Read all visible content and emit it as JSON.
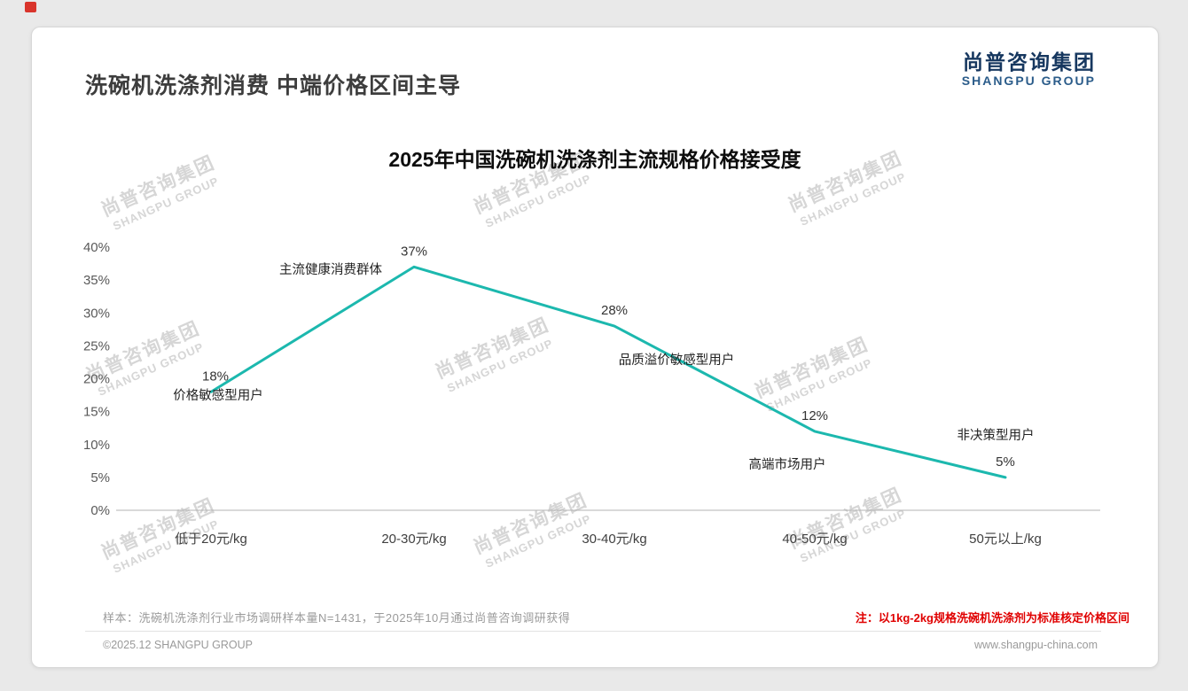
{
  "page": {
    "title": "洗碗机洗涤剂消费 中端价格区间主导"
  },
  "logo": {
    "cn": "尚普咨询集团",
    "en": "SHANGPU GROUP"
  },
  "watermark": {
    "line1": "尚普咨询集团",
    "line2": "SHANGPU GROUP"
  },
  "chart_data": {
    "type": "line",
    "title": "2025年中国洗碗机洗涤剂主流规格价格接受度",
    "categories": [
      "低于20元/kg",
      "20-30元/kg",
      "30-40元/kg",
      "40-50元/kg",
      "50元以上/kg"
    ],
    "values": [
      18,
      37,
      28,
      12,
      5
    ],
    "value_labels": [
      "18%",
      "37%",
      "28%",
      "12%",
      "5%"
    ],
    "annotations": [
      "价格敏感型用户",
      "主流健康消费群体",
      "品质溢价敏感型用户",
      "高端市场用户",
      "非决策型用户"
    ],
    "xlabel": "",
    "ylabel": "",
    "ylim": [
      0,
      40
    ],
    "ytick_step": 5,
    "ytick_labels": [
      "0%",
      "5%",
      "10%",
      "15%",
      "20%",
      "25%",
      "30%",
      "35%",
      "40%"
    ],
    "line_color": "#1cb8ae",
    "grid": false,
    "legend": "none"
  },
  "notes": {
    "sample": "样本：洗碗机洗涤剂行业市场调研样本量N=1431，于2025年10月通过尚普咨询调研获得",
    "red_note": "注：以1kg-2kg规格洗碗机洗涤剂为标准核定价格区间"
  },
  "footer": {
    "copyright": "©2025.12 SHANGPU GROUP",
    "website": "www.shangpu-china.com"
  }
}
